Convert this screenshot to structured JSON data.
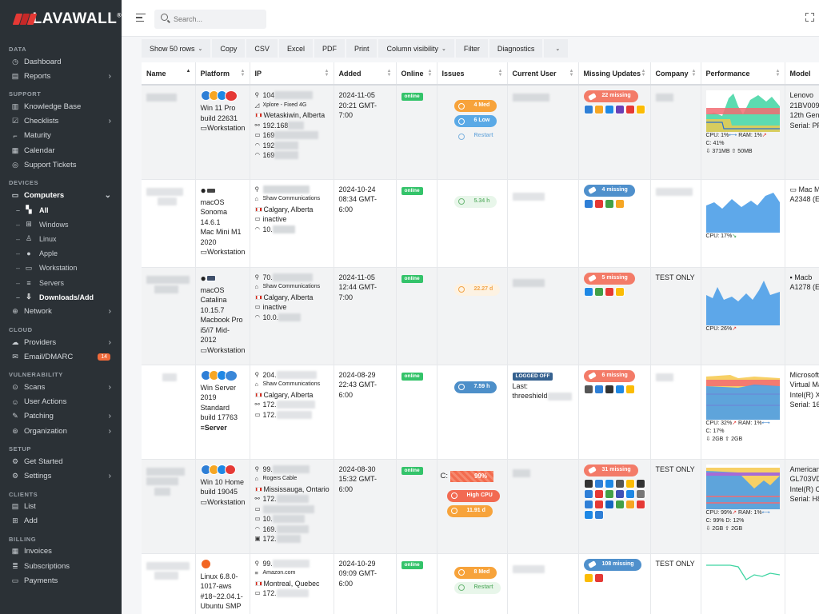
{
  "brand": {
    "name": "LAVAWALL",
    "reg": "®"
  },
  "search": {
    "placeholder": "Search..."
  },
  "sidebar": {
    "sections": [
      {
        "title": "DATA",
        "items": [
          {
            "label": "Dashboard",
            "icon": "dashboard-icon"
          },
          {
            "label": "Reports",
            "icon": "reports-icon",
            "chevron": true
          }
        ]
      },
      {
        "title": "SUPPORT",
        "items": [
          {
            "label": "Knowledge Base",
            "icon": "book-icon"
          },
          {
            "label": "Checklists",
            "icon": "checklist-icon",
            "chevron": true
          },
          {
            "label": "Maturity",
            "icon": "stairs-icon"
          },
          {
            "label": "Calendar",
            "icon": "calendar-icon"
          },
          {
            "label": "Support Tickets",
            "icon": "ticket-icon"
          }
        ]
      },
      {
        "title": "DEVICES",
        "items": [
          {
            "label": "Computers",
            "icon": "monitor-icon",
            "expanded": true
          }
        ]
      },
      {
        "title": "CLOUD",
        "items": [
          {
            "label": "Providers",
            "icon": "cloud-icon",
            "chevron": true
          },
          {
            "label": "Email/DMARC",
            "icon": "mail-icon",
            "badge": "14"
          }
        ]
      },
      {
        "title": "VULNERABILITY",
        "items": [
          {
            "label": "Scans",
            "icon": "scan-icon",
            "chevron": true
          },
          {
            "label": "User Actions",
            "icon": "user-actions-icon"
          },
          {
            "label": "Patching",
            "icon": "patch-icon",
            "chevron": true
          },
          {
            "label": "Organization",
            "icon": "org-icon",
            "chevron": true
          }
        ]
      },
      {
        "title": "SETUP",
        "items": [
          {
            "label": "Get Started",
            "icon": "rocket-icon"
          },
          {
            "label": "Settings",
            "icon": "gear-icon",
            "chevron": true
          }
        ]
      },
      {
        "title": "CLIENTS",
        "items": [
          {
            "label": "List",
            "icon": "list-icon"
          },
          {
            "label": "Add",
            "icon": "add-icon"
          }
        ]
      },
      {
        "title": "BILLING",
        "items": [
          {
            "label": "Invoices",
            "icon": "invoice-icon"
          },
          {
            "label": "Subscriptions",
            "icon": "subscription-icon"
          },
          {
            "label": "Payments",
            "icon": "payment-icon"
          }
        ]
      }
    ],
    "computers_sub": [
      {
        "label": "All",
        "active": true
      },
      {
        "label": "Windows"
      },
      {
        "label": "Linux"
      },
      {
        "label": "Apple"
      },
      {
        "label": "Workstation"
      },
      {
        "label": "Servers"
      },
      {
        "label": "Downloads/Add"
      }
    ],
    "network": "Network"
  },
  "toolbar": {
    "show_rows": "Show 50 rows",
    "copy": "Copy",
    "csv": "CSV",
    "excel": "Excel",
    "pdf": "PDF",
    "print": "Print",
    "column_visibility": "Column visibility",
    "filter": "Filter",
    "diagnostics": "Diagnostics"
  },
  "columns": [
    "Name",
    "Platform",
    "IP",
    "Added",
    "Online",
    "Issues",
    "Current User",
    "Missing Updates",
    "Company",
    "Performance",
    "Model"
  ],
  "colors": {
    "accent": "#e53935",
    "online": "#34c36a",
    "sidebar_bg": "#2b3136"
  },
  "rows": [
    {
      "platform": [
        "Win 11 Pro",
        "build 22631",
        "Workstation"
      ],
      "ip": {
        "pub": "104",
        "isp": "Xplore - Fixed 4G",
        "city": "Wetaskiwin, Alberta",
        "lan": [
          "192.168",
          "169",
          "192",
          "169"
        ]
      },
      "added": [
        "2024-11-05",
        "20:21 GMT-7:00"
      ],
      "online": "online",
      "issues": [
        {
          "label": "4 Med",
          "style": "orange"
        },
        {
          "label": "6 Low",
          "style": "blue"
        },
        {
          "label": "Restart",
          "style": "ghost"
        }
      ],
      "missing": "22 missing",
      "company": "",
      "perf": {
        "cpu": "CPU: 1%",
        "ram": "RAM: 1%",
        "c": "C: 41%",
        "down": "371MB",
        "up": "50MB"
      },
      "model": [
        "Lenovo",
        "21BV009",
        "12th Gen",
        "Serial: PF"
      ]
    },
    {
      "platform": [
        "macOS",
        "Sonoma",
        "14.6.1",
        "Mac Mini M1",
        "2020",
        "Workstation"
      ],
      "ip": {
        "isp": "Shaw Communications",
        "city": "Calgary, Alberta",
        "inactive": "inactive",
        "lan": [
          "10."
        ]
      },
      "added": [
        "2024-10-24",
        "08:34 GMT-6:00"
      ],
      "online": "online",
      "issues": [
        {
          "label": "5.34 h",
          "style": "green-ghost"
        }
      ],
      "missing": "4 missing",
      "company": "",
      "perf": {
        "cpu": "CPU: 17%"
      },
      "model": [
        "Mac M",
        "A2348 (E"
      ]
    },
    {
      "platform": [
        "macOS",
        "Catalina",
        "10.15.7",
        "Macbook Pro",
        "i5/i7 Mid-",
        "2012",
        "Workstation"
      ],
      "ip": {
        "pub": "70.",
        "isp": "Shaw Communications",
        "city": "Calgary, Alberta",
        "inactive": "inactive",
        "lan": [
          "10.0."
        ]
      },
      "added": [
        "2024-11-05",
        "12:44 GMT-7:00"
      ],
      "online": "online",
      "issues": [
        {
          "label": "22.27 d",
          "style": "orange-ghost"
        }
      ],
      "missing": "5 missing",
      "company": "TEST ONLY",
      "perf": {
        "cpu": "CPU: 26%"
      },
      "model": [
        "Macb",
        "A1278 (E"
      ]
    },
    {
      "platform": [
        "Win Server",
        "2019",
        "Standard",
        "build 17763",
        "Server"
      ],
      "ip": {
        "pub": "204.",
        "isp": "Shaw Communications",
        "city": "Calgary, Alberta",
        "lan": [
          "172.",
          "172."
        ]
      },
      "added": [
        "2024-08-29",
        "22:43 GMT-6:00"
      ],
      "online": "online",
      "issues": [
        {
          "label": "7.59 h",
          "style": "dblue"
        }
      ],
      "user": {
        "status": "LOGGED OFF",
        "last": "Last:",
        "name": "threeshield"
      },
      "missing": "6 missing",
      "company": "",
      "perf": {
        "cpu": "CPU: 32%",
        "ram": "RAM: 1%",
        "c": "C: 17%",
        "down": "2GB",
        "up": "2GB"
      },
      "model": [
        "Microsoft",
        "Virtual Ma",
        "Intel(R) X",
        "Serial: 16"
      ]
    },
    {
      "platform": [
        "Win 10 Home",
        "build 19045",
        "Workstation"
      ],
      "ip": {
        "pub": "99.",
        "isp": "Rogers Cable",
        "city": "Mississauga, Ontario",
        "lan": [
          "172.",
          "",
          "10.",
          "169.",
          "172."
        ]
      },
      "added": [
        "2024-08-30",
        "15:32 GMT-6:00"
      ],
      "online": "online",
      "issues": [
        {
          "label": "High CPU",
          "style": "red"
        },
        {
          "label": "11.91 d",
          "style": "orange"
        }
      ],
      "disk": {
        "label": "C:",
        "value": "99%"
      },
      "missing": "31 missing",
      "company": "TEST ONLY",
      "perf": {
        "cpu": "CPU: 99%",
        "ram": "RAM: 1%",
        "c": "C: 99% D: 12%",
        "down": "2GB",
        "up": "2GB"
      },
      "model": [
        "American",
        "GL703VD",
        "Intel(R) C",
        "Serial: H8"
      ]
    },
    {
      "platform": [
        "Linux 6.8.0-",
        "1017-aws",
        "#18~22.04.1-",
        "Ubuntu SMP"
      ],
      "ip": {
        "pub": "99.",
        "isp": "Amazon.com",
        "city": "Montreal, Quebec",
        "lan": [
          "172."
        ]
      },
      "added": [
        "2024-10-29",
        "09:09 GMT-6:00"
      ],
      "online": "online",
      "issues": [
        {
          "label": "8 Med",
          "style": "orange"
        },
        {
          "label": "Restart",
          "style": "green-ghost"
        }
      ],
      "missing": "108 missing",
      "company": "TEST ONLY",
      "perf": {},
      "model": []
    }
  ]
}
